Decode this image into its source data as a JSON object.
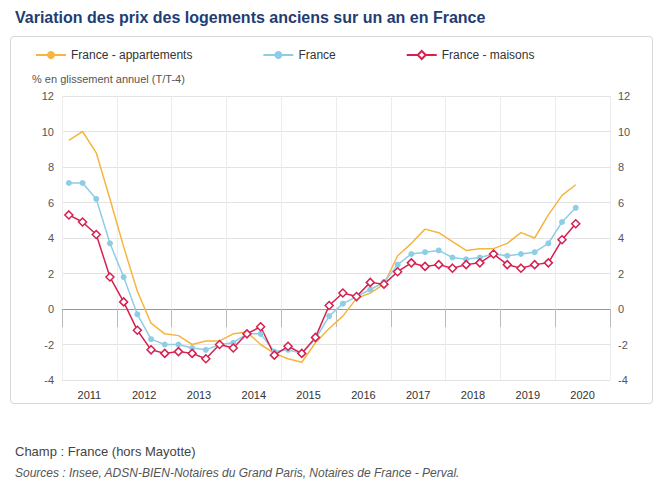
{
  "chart_data": {
    "type": "line",
    "title": "Variation des prix des logements anciens sur un an en France",
    "y_label": "% en glissement annuel (T/T-4)",
    "annotations": [
      "Champ : France (hors Mayotte)",
      "Sources : Insee, ADSN-BIEN-Notaires du Grand Paris, Notaires de France - Perval."
    ],
    "categories": [
      null,
      "2011",
      null,
      null,
      null,
      "2012",
      null,
      null,
      null,
      "2013",
      null,
      null,
      null,
      "2014",
      null,
      null,
      null,
      "2015",
      null,
      null,
      null,
      "2016",
      null,
      null,
      null,
      "2017",
      null,
      null,
      null,
      "2018",
      null,
      null,
      null,
      "2019",
      null,
      null,
      null,
      "2020",
      null,
      null
    ],
    "series": [
      {
        "name": "France - appartements",
        "color": "#f5b53f",
        "marker": "none",
        "line_style": "solid",
        "values": [
          9.5,
          10.0,
          8.8,
          6.2,
          3.5,
          1.0,
          -0.8,
          -1.4,
          -1.5,
          -2.0,
          -1.8,
          -1.8,
          -1.4,
          -1.3,
          -2.0,
          -2.5,
          -2.8,
          -3.0,
          -1.9,
          -1.1,
          -0.4,
          0.6,
          0.9,
          1.4,
          3.0,
          3.7,
          4.5,
          4.3,
          3.8,
          3.3,
          3.4,
          3.4,
          3.7,
          4.3,
          4.0,
          5.3,
          6.4,
          7.0,
          null,
          null
        ]
      },
      {
        "name": "France",
        "color": "#8ecde6",
        "marker": "circle",
        "line_style": "solid",
        "values": [
          7.1,
          7.1,
          6.2,
          3.7,
          1.8,
          -0.3,
          -1.7,
          -2.0,
          -2.0,
          -2.2,
          -2.3,
          -2.0,
          -1.9,
          -1.4,
          -1.4,
          -2.4,
          -2.3,
          -2.5,
          -1.7,
          -0.4,
          0.3,
          0.7,
          1.1,
          1.5,
          2.5,
          3.1,
          3.2,
          3.3,
          2.9,
          2.8,
          2.9,
          3.1,
          3.0,
          3.1,
          3.2,
          3.7,
          4.9,
          5.7,
          null,
          null
        ]
      },
      {
        "name": "France - maisons",
        "color": "#d6204f",
        "marker": "diamond",
        "line_style": "solid",
        "values": [
          5.3,
          4.9,
          4.2,
          1.8,
          0.4,
          -1.2,
          -2.3,
          -2.5,
          -2.4,
          -2.5,
          -2.8,
          -2.0,
          -2.2,
          -1.4,
          -1.0,
          -2.6,
          -2.1,
          -2.5,
          -1.6,
          0.2,
          0.9,
          0.7,
          1.5,
          1.4,
          2.1,
          2.6,
          2.4,
          2.5,
          2.3,
          2.5,
          2.6,
          3.1,
          2.5,
          2.3,
          2.5,
          2.6,
          3.9,
          4.8,
          null,
          null
        ]
      }
    ],
    "ylim": [
      -4,
      12
    ],
    "yticks": [
      -4,
      -2,
      0,
      2,
      4,
      6,
      8,
      10,
      12
    ],
    "y2lim": [
      -4,
      12
    ],
    "y2ticks": [
      -4,
      -2,
      0,
      2,
      4,
      6,
      8,
      10,
      12
    ],
    "grid": true,
    "legend": "top",
    "data_labels": false
  }
}
